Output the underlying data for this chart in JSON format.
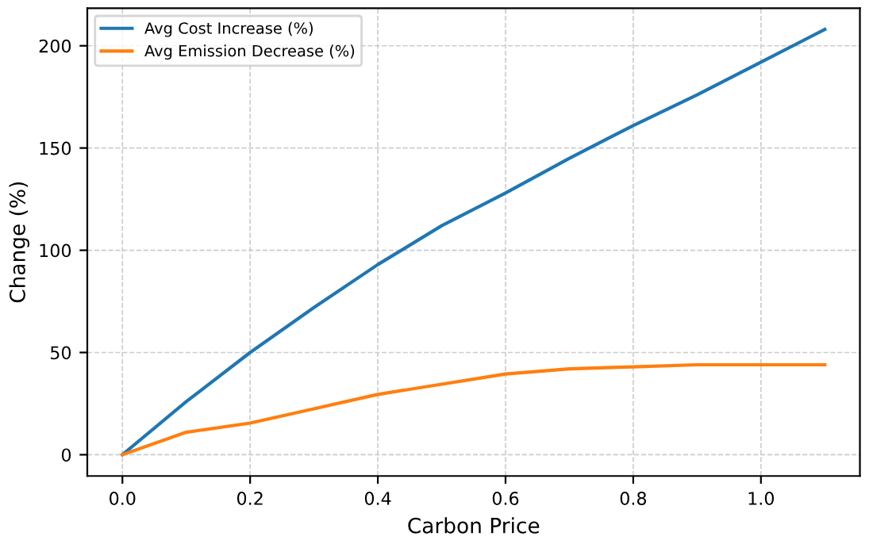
{
  "chart_data": {
    "type": "line",
    "xlabel": "Carbon Price",
    "ylabel": "Change (%)",
    "x": [
      0.0,
      0.1,
      0.2,
      0.3,
      0.4,
      0.5,
      0.6,
      0.7,
      0.8,
      0.9,
      1.0,
      1.1
    ],
    "series": [
      {
        "name": "Avg Cost Increase (%)",
        "color": "#1f77b4",
        "values": [
          0,
          26,
          50,
          72,
          93,
          112,
          128,
          145,
          161,
          176,
          192,
          208
        ]
      },
      {
        "name": "Avg Emission Decrease (%)",
        "color": "#ff7f0e",
        "values": [
          0,
          11,
          15.5,
          22.5,
          29.5,
          34.5,
          39.5,
          42,
          43,
          44,
          44,
          44
        ]
      }
    ],
    "xlim": [
      -0.055,
      1.155
    ],
    "ylim": [
      -10.4,
      218.4
    ],
    "xticks": [
      {
        "value": 0.0,
        "label": "0.0"
      },
      {
        "value": 0.2,
        "label": "0.2"
      },
      {
        "value": 0.4,
        "label": "0.4"
      },
      {
        "value": 0.6,
        "label": "0.6"
      },
      {
        "value": 0.8,
        "label": "0.8"
      },
      {
        "value": 1.0,
        "label": "1.0"
      }
    ],
    "yticks": [
      0,
      50,
      100,
      150,
      200
    ],
    "grid": true,
    "legend": "top left",
    "line_style": "solid",
    "marker": "none"
  }
}
